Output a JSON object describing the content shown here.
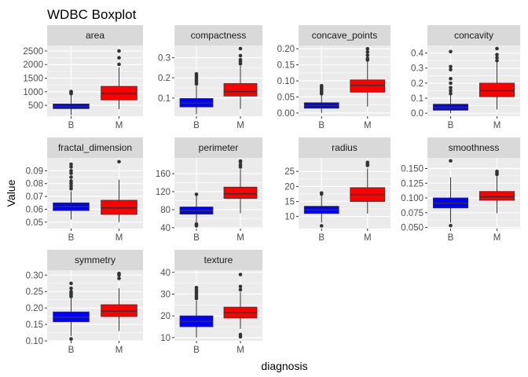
{
  "chart_data": {
    "type": "boxplot",
    "title": "WDBC Boxplot",
    "xlabel": "diagnosis",
    "ylabel": "Value",
    "categories": [
      "B",
      "M"
    ],
    "category_colors": {
      "B": "#0000FF",
      "M": "#FF0000"
    },
    "panel_background": "#EBEBEB",
    "strip_background": "#D9D9D9",
    "grid": true,
    "legend": "none",
    "panels": [
      {
        "name": "area",
        "ylim": [
          100,
          2700
        ],
        "yticks": [
          500,
          1000,
          1500,
          2000,
          2500
        ],
        "ytick_labels": [
          "500",
          "1000",
          "1500",
          "2000",
          "2500"
        ],
        "boxes": [
          {
            "category": "B",
            "min": 145,
            "q1": 380,
            "median": 460,
            "q3": 550,
            "max": 990,
            "outliers": [
              1010,
              930,
              1000,
              960
            ]
          },
          {
            "category": "M",
            "min": 360,
            "q1": 700,
            "median": 930,
            "q3": 1200,
            "max": 1900,
            "outliers": [
              2010,
              2250,
              2500
            ]
          }
        ]
      },
      {
        "name": "compactness",
        "ylim": [
          0.01,
          0.36
        ],
        "yticks": [
          0.1,
          0.2,
          0.3
        ],
        "ytick_labels": [
          "0.1",
          "0.2",
          "0.3"
        ],
        "boxes": [
          {
            "category": "B",
            "min": 0.02,
            "q1": 0.056,
            "median": 0.075,
            "q3": 0.098,
            "max": 0.16,
            "outliers": [
              0.17,
              0.18,
              0.19,
              0.2,
              0.21,
              0.22
            ]
          },
          {
            "category": "M",
            "min": 0.046,
            "q1": 0.11,
            "median": 0.132,
            "q3": 0.172,
            "max": 0.26,
            "outliers": [
              0.27,
              0.28,
              0.29,
              0.31,
              0.345
            ]
          }
        ]
      },
      {
        "name": "concave_points",
        "ylim": [
          -0.01,
          0.21
        ],
        "yticks": [
          0.0,
          0.05,
          0.1,
          0.15,
          0.2
        ],
        "ytick_labels": [
          "0.00",
          "0.05",
          "0.10",
          "0.15",
          "0.20"
        ],
        "boxes": [
          {
            "category": "B",
            "min": 0.0,
            "q1": 0.015,
            "median": 0.023,
            "q3": 0.032,
            "max": 0.055,
            "outliers": [
              0.06,
              0.065,
              0.07,
              0.075,
              0.08,
              0.085
            ]
          },
          {
            "category": "M",
            "min": 0.02,
            "q1": 0.065,
            "median": 0.086,
            "q3": 0.103,
            "max": 0.16,
            "outliers": [
              0.165,
              0.17,
              0.18,
              0.19,
              0.2
            ]
          }
        ]
      },
      {
        "name": "concavity",
        "ylim": [
          -0.02,
          0.45
        ],
        "yticks": [
          0.0,
          0.1,
          0.2,
          0.3,
          0.4
        ],
        "ytick_labels": [
          "0.0",
          "0.1",
          "0.2",
          "0.3",
          "0.4"
        ],
        "boxes": [
          {
            "category": "B",
            "min": 0.0,
            "q1": 0.02,
            "median": 0.037,
            "q3": 0.06,
            "max": 0.12,
            "outliers": [
              0.13,
              0.15,
              0.17,
              0.2,
              0.23,
              0.29,
              0.31,
              0.41
            ]
          },
          {
            "category": "M",
            "min": 0.025,
            "q1": 0.11,
            "median": 0.15,
            "q3": 0.2,
            "max": 0.34,
            "outliers": [
              0.35,
              0.37,
              0.39,
              0.43
            ]
          }
        ]
      },
      {
        "name": "fractal_dimension",
        "ylim": [
          0.045,
          0.1
        ],
        "yticks": [
          0.05,
          0.06,
          0.07,
          0.08,
          0.09
        ],
        "ytick_labels": [
          "0.05",
          "0.06",
          "0.07",
          "0.08",
          "0.09"
        ],
        "boxes": [
          {
            "category": "B",
            "min": 0.052,
            "q1": 0.059,
            "median": 0.062,
            "q3": 0.065,
            "max": 0.074,
            "outliers": [
              0.076,
              0.078,
              0.08,
              0.082,
              0.085,
              0.088,
              0.09,
              0.093,
              0.095
            ]
          },
          {
            "category": "M",
            "min": 0.05,
            "q1": 0.056,
            "median": 0.061,
            "q3": 0.067,
            "max": 0.083,
            "outliers": [
              0.097
            ]
          }
        ]
      },
      {
        "name": "perimeter",
        "ylim": [
          38,
          195
        ],
        "yticks": [
          40,
          80,
          120,
          160
        ],
        "ytick_labels": [
          "40",
          "80",
          "120",
          "160"
        ],
        "boxes": [
          {
            "category": "B",
            "min": 50,
            "q1": 70,
            "median": 78,
            "q3": 86,
            "max": 113,
            "outliers": [
              44,
              46,
              48,
              114
            ]
          },
          {
            "category": "M",
            "min": 72,
            "q1": 105,
            "median": 115,
            "q3": 130,
            "max": 170,
            "outliers": [
              175,
              180,
              186,
              188
            ]
          }
        ]
      },
      {
        "name": "radius",
        "ylim": [
          6,
          29.5
        ],
        "yticks": [
          10,
          15,
          20,
          25
        ],
        "ytick_labels": [
          "10",
          "15",
          "20",
          "25"
        ],
        "boxes": [
          {
            "category": "B",
            "min": 8,
            "q1": 11,
            "median": 12.2,
            "q3": 13.4,
            "max": 17,
            "outliers": [
              6.9,
              17.5,
              17.8
            ]
          },
          {
            "category": "M",
            "min": 11,
            "q1": 15,
            "median": 17.3,
            "q3": 19.6,
            "max": 26,
            "outliers": [
              27,
              27.4,
              28
            ]
          }
        ]
      },
      {
        "name": "smoothness",
        "ylim": [
          0.048,
          0.168
        ],
        "yticks": [
          0.05,
          0.075,
          0.1,
          0.125,
          0.15
        ],
        "ytick_labels": [
          "0.050",
          "0.075",
          "0.100",
          "0.125",
          "0.150"
        ],
        "boxes": [
          {
            "category": "B",
            "min": 0.058,
            "q1": 0.083,
            "median": 0.091,
            "q3": 0.1,
            "max": 0.135,
            "outliers": [
              0.053,
              0.163
            ]
          },
          {
            "category": "M",
            "min": 0.074,
            "q1": 0.096,
            "median": 0.102,
            "q3": 0.111,
            "max": 0.137,
            "outliers": [
              0.14,
              0.142,
              0.145
            ]
          }
        ]
      },
      {
        "name": "symmetry",
        "ylim": [
          0.1,
          0.315
        ],
        "yticks": [
          0.1,
          0.15,
          0.2,
          0.25,
          0.3
        ],
        "ytick_labels": [
          "0.10",
          "0.15",
          "0.20",
          "0.25",
          "0.30"
        ],
        "boxes": [
          {
            "category": "B",
            "min": 0.115,
            "q1": 0.158,
            "median": 0.172,
            "q3": 0.188,
            "max": 0.23,
            "outliers": [
              0.106,
              0.235,
              0.24,
              0.245,
              0.25,
              0.26,
              0.275
            ]
          },
          {
            "category": "M",
            "min": 0.13,
            "q1": 0.174,
            "median": 0.19,
            "q3": 0.21,
            "max": 0.26,
            "outliers": [
              0.29,
              0.3,
              0.305
            ]
          }
        ]
      },
      {
        "name": "texture",
        "ylim": [
          8.5,
          41
        ],
        "yticks": [
          10,
          20,
          30,
          40
        ],
        "ytick_labels": [
          "10",
          "20",
          "30",
          "40"
        ],
        "boxes": [
          {
            "category": "B",
            "min": 10,
            "q1": 15,
            "median": 17.4,
            "q3": 20,
            "max": 27,
            "outliers": [
              28,
              29,
              30,
              31,
              32,
              33
            ]
          },
          {
            "category": "M",
            "min": 14,
            "q1": 19,
            "median": 21.5,
            "q3": 24,
            "max": 31,
            "outliers": [
              10.4,
              11.4,
              32,
              33.5,
              39
            ]
          }
        ]
      }
    ]
  }
}
